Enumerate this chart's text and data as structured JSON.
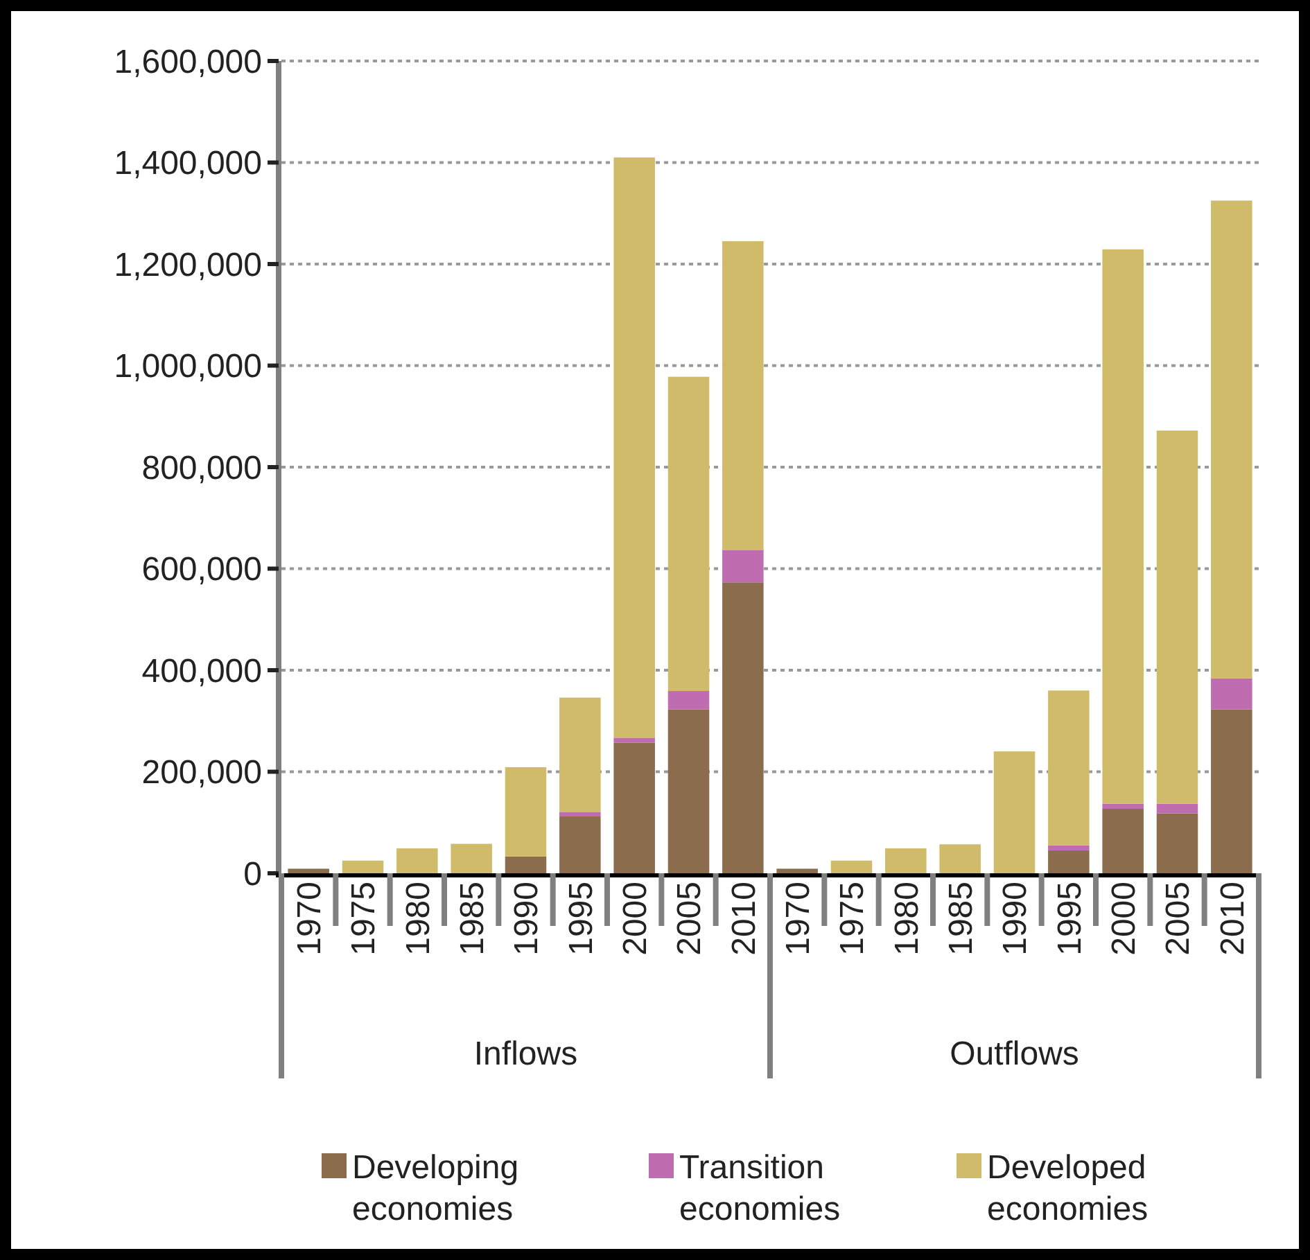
{
  "chart_data": {
    "type": "bar",
    "stacked": true,
    "categories": [
      "1970",
      "1975",
      "1980",
      "1985",
      "1990",
      "1995",
      "2000",
      "2005",
      "2010",
      "1970",
      "1975",
      "1980",
      "1985",
      "1990",
      "1995",
      "2000",
      "2005",
      "2010"
    ],
    "series": [
      {
        "name": "Developing economies",
        "color": "#8b6d4e",
        "values": [
          9000,
          null,
          null,
          null,
          33000,
          112000,
          257000,
          323000,
          573000,
          9000,
          null,
          null,
          null,
          null,
          45000,
          127000,
          118000,
          323000
        ]
      },
      {
        "name": "Transition economies",
        "color": "#c06cb0",
        "values": [
          0,
          0,
          0,
          0,
          0,
          9000,
          10000,
          36000,
          64000,
          0,
          0,
          0,
          0,
          0,
          10000,
          10000,
          19000,
          61000
        ]
      },
      {
        "name": "Developed economies",
        "color": "#cfbb6a",
        "values": [
          null,
          25000,
          49000,
          58000,
          176000,
          225000,
          1143000,
          619000,
          608000,
          null,
          25000,
          49000,
          57000,
          240000,
          305000,
          1092000,
          735000,
          941000
        ]
      }
    ],
    "ylim": [
      0,
      1600000
    ],
    "yticks": [
      {
        "value": 0,
        "label": "0"
      },
      {
        "value": 200000,
        "label": "200,000"
      },
      {
        "value": 400000,
        "label": "400,000"
      },
      {
        "value": 600000,
        "label": "600,000"
      },
      {
        "value": 800000,
        "label": "800,000"
      },
      {
        "value": 1000000,
        "label": "1,000,000"
      },
      {
        "value": 1200000,
        "label": "1,200,000"
      },
      {
        "value": 1400000,
        "label": "1,400,000"
      },
      {
        "value": 1600000,
        "label": "1,600,000"
      }
    ],
    "annotations": [
      "Inflows",
      "Outflows"
    ],
    "grid": "y",
    "legend": "bottom"
  }
}
